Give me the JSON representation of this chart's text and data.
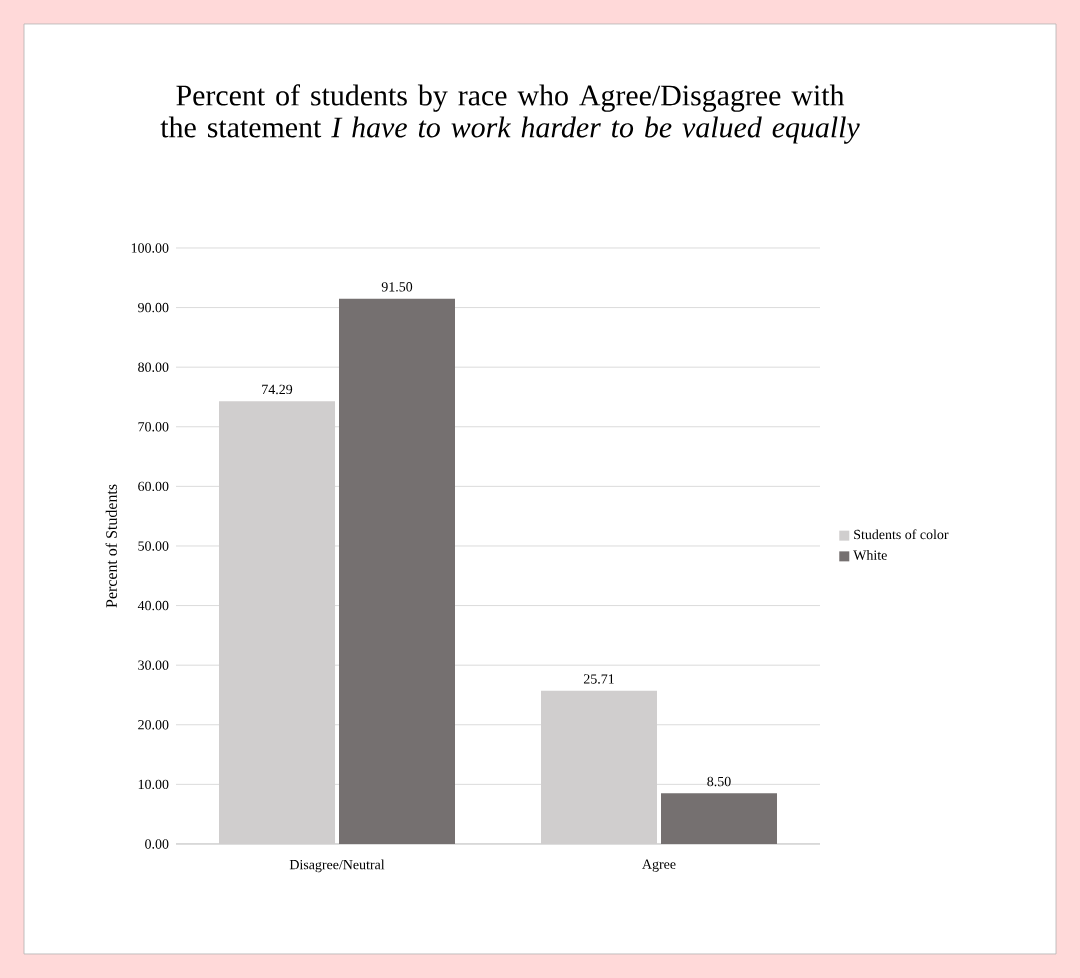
{
  "chart_data": {
    "type": "bar",
    "title": "Percent of students by race who Agree/Disgagree with the statement *I have to work harder to be valued equally*",
    "ylabel": "Percent of Students",
    "categories": [
      "Disagree/Neutral",
      "Agree"
    ],
    "series": [
      {
        "name": "Students of color",
        "color": "#d0cece",
        "values": [
          74.29,
          25.71
        ],
        "value_labels": [
          "74.29",
          "25.71"
        ]
      },
      {
        "name": "White",
        "color": "#757070",
        "values": [
          91.5,
          8.5
        ],
        "value_labels": [
          "91.50",
          "8.50"
        ]
      }
    ],
    "ylim": [
      0,
      100
    ],
    "yticks": [
      {
        "value": 0,
        "label": "0.00"
      },
      {
        "value": 10,
        "label": "10.00"
      },
      {
        "value": 20,
        "label": "20.00"
      },
      {
        "value": 30,
        "label": "30.00"
      },
      {
        "value": 40,
        "label": "40.00"
      },
      {
        "value": 50,
        "label": "50.00"
      },
      {
        "value": 60,
        "label": "60.00"
      },
      {
        "value": 70,
        "label": "70.00"
      },
      {
        "value": 80,
        "label": "80.00"
      },
      {
        "value": 90,
        "label": "90.00"
      },
      {
        "value": 100,
        "label": "100.00"
      }
    ],
    "grid": "y",
    "legend": "right"
  }
}
